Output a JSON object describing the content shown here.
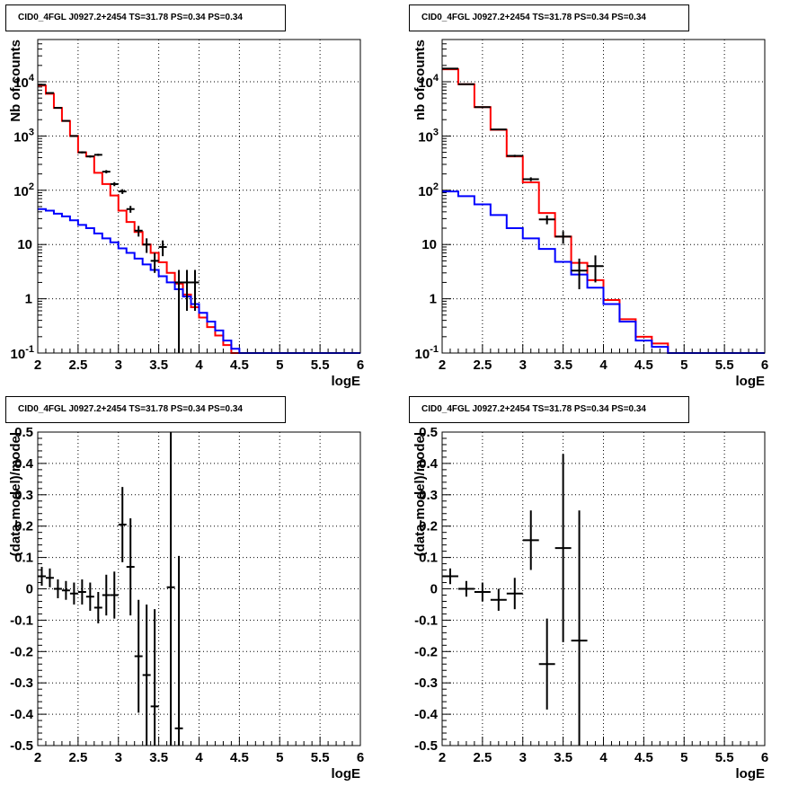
{
  "chart_data": [
    {
      "type": "line",
      "panel": "top-left",
      "title": "CID0_4FGL J0927.2+2454 TS=31.78 PS=0.34 PS=0.34",
      "xlabel": "logE",
      "ylabel": "Nb of counts",
      "xlim": [
        2,
        6
      ],
      "ylim": [
        0.1,
        60000
      ],
      "log_y": true,
      "grid": true,
      "xticks": [
        "2",
        "2.5",
        "3",
        "3.5",
        "4",
        "4.5",
        "5",
        "5.5",
        "6"
      ],
      "yticks": [
        "10^-1",
        "1",
        "10",
        "10^2",
        "10^3",
        "10^4"
      ],
      "bin_edges": [
        2.0,
        2.1,
        2.2,
        2.3,
        2.4,
        2.5,
        2.6,
        2.7,
        2.8,
        2.9,
        3.0,
        3.1,
        3.2,
        3.3,
        3.4,
        3.5,
        3.6,
        3.7,
        3.8,
        3.9,
        4.0,
        4.1,
        4.2,
        4.3,
        4.4,
        4.5,
        4.6,
        4.7,
        4.8,
        4.9,
        5.0,
        5.1,
        5.2,
        5.3,
        5.4,
        5.5,
        5.6,
        5.7,
        5.8,
        5.9,
        6.0
      ],
      "series": [
        {
          "color": "#ff0000",
          "kind": "step",
          "values": [
            8500,
            6000,
            3300,
            1900,
            1000,
            500,
            420,
            210,
            130,
            80,
            42,
            26,
            17,
            10,
            7,
            4.7,
            3,
            1.9,
            1.2,
            0.7,
            0.45,
            0.3,
            0.21,
            0.14,
            0.1,
            0.1,
            0.1,
            0.1,
            0.1,
            0.1,
            0.1,
            0.1,
            0.1,
            0.1,
            0.1,
            0.1,
            0.1,
            0.1,
            0.1,
            0.1
          ]
        },
        {
          "color": "#0000ff",
          "kind": "step",
          "values": [
            45,
            42,
            37,
            33,
            28,
            23,
            20,
            16,
            13,
            11,
            8.5,
            7,
            5.5,
            4.3,
            3.4,
            2.6,
            2,
            1.5,
            1.1,
            0.8,
            0.55,
            0.38,
            0.26,
            0.17,
            0.12,
            0.1,
            0.1,
            0.1,
            0.1,
            0.1,
            0.1,
            0.1,
            0.1,
            0.1,
            0.1,
            0.1,
            0.1,
            0.1,
            0.1,
            0.1
          ]
        },
        {
          "color": "#000000",
          "kind": "points",
          "x": [
            2.05,
            2.15,
            2.25,
            2.35,
            2.45,
            2.55,
            2.65,
            2.75,
            2.85,
            2.95,
            3.05,
            3.15,
            3.25,
            3.35,
            3.45,
            3.55,
            3.75,
            3.85,
            3.95
          ],
          "y": [
            8800,
            6200,
            3300,
            1900,
            1000,
            500,
            420,
            450,
            220,
            130,
            95,
            45,
            18,
            10,
            5,
            9,
            2,
            2,
            2
          ],
          "yerr_low": [
            90,
            80,
            60,
            45,
            30,
            22,
            20,
            21,
            15,
            11,
            9.5,
            6.5,
            4,
            3,
            2,
            2.9,
            1.9,
            1.4,
            1.4
          ],
          "yerr_high": [
            90,
            80,
            60,
            45,
            30,
            22,
            20,
            21,
            15,
            11,
            9.5,
            6.5,
            4,
            3,
            2,
            2.9,
            1.4,
            1.4,
            1.4
          ]
        }
      ]
    },
    {
      "type": "line",
      "panel": "top-right",
      "title": "CID0_4FGL J0927.2+2454 TS=31.78 PS=0.34 PS=0.34",
      "xlabel": "logE",
      "ylabel": "nb of counts",
      "xlim": [
        2,
        6
      ],
      "ylim": [
        0.1,
        60000
      ],
      "log_y": true,
      "grid": true,
      "xticks": [
        "2",
        "2.5",
        "3",
        "3.5",
        "4",
        "4.5",
        "5",
        "5.5",
        "6"
      ],
      "yticks": [
        "10^-1",
        "1",
        "10",
        "10^2",
        "10^3",
        "10^4"
      ],
      "bin_edges": [
        2.0,
        2.2,
        2.4,
        2.6,
        2.8,
        3.0,
        3.2,
        3.4,
        3.6,
        3.8,
        4.0,
        4.2,
        4.4,
        4.6,
        4.8,
        5.0,
        5.2,
        5.4,
        5.6,
        5.8,
        6.0
      ],
      "series": [
        {
          "color": "#ff0000",
          "kind": "step",
          "values": [
            17000,
            9000,
            3400,
            1300,
            420,
            140,
            38,
            14,
            4.6,
            2.2,
            0.95,
            0.42,
            0.2,
            0.15,
            0.1,
            0.1,
            0.1,
            0.1,
            0.1,
            0.1
          ]
        },
        {
          "color": "#0000ff",
          "kind": "step",
          "values": [
            95,
            78,
            55,
            35,
            20,
            13,
            8.3,
            4.8,
            2.8,
            1.6,
            0.8,
            0.38,
            0.17,
            0.13,
            0.1,
            0.1,
            0.1,
            0.1,
            0.1,
            0.1
          ]
        },
        {
          "color": "#000000",
          "kind": "points",
          "x": [
            2.1,
            2.3,
            2.5,
            2.7,
            2.9,
            3.1,
            3.3,
            3.5,
            3.7,
            3.9
          ],
          "y": [
            17500,
            9000,
            3400,
            1320,
            430,
            160,
            29,
            14,
            3.3,
            4
          ],
          "yerr_low": [
            130,
            95,
            58,
            36,
            21,
            13,
            5.4,
            3.7,
            1.8,
            2
          ],
          "yerr_high": [
            130,
            95,
            58,
            36,
            21,
            13,
            5.4,
            3.7,
            2.2,
            2.3
          ]
        }
      ]
    },
    {
      "type": "scatter",
      "panel": "bottom-left",
      "title": "CID0_4FGL J0927.2+2454 TS=31.78 PS=0.34 PS=0.34",
      "xlabel": "logE",
      "ylabel": "(data-model)/model",
      "xlim": [
        2,
        6
      ],
      "ylim": [
        -0.5,
        0.5
      ],
      "grid": true,
      "xticks": [
        "2",
        "2.5",
        "3",
        "3.5",
        "4",
        "4.5",
        "5",
        "5.5",
        "6"
      ],
      "yticks": [
        "-0.5",
        "-0.4",
        "-0.3",
        "-0.2",
        "-0.1",
        "0",
        "0.1",
        "0.2",
        "0.3",
        "0.4",
        "0.5"
      ],
      "x": [
        2.05,
        2.15,
        2.25,
        2.35,
        2.45,
        2.55,
        2.65,
        2.75,
        2.85,
        2.95,
        3.05,
        3.15,
        3.25,
        3.35,
        3.45,
        3.65,
        3.75
      ],
      "xerr": 0.05,
      "y": [
        0.04,
        0.035,
        0.0,
        -0.005,
        -0.015,
        -0.01,
        -0.025,
        -0.06,
        -0.02,
        -0.02,
        0.205,
        0.07,
        -0.215,
        -0.275,
        -0.375,
        0.005,
        -0.445
      ],
      "yerr": [
        0.03,
        0.03,
        0.03,
        0.03,
        0.035,
        0.04,
        0.045,
        0.05,
        0.065,
        0.075,
        0.12,
        0.155,
        0.18,
        0.225,
        0.31,
        0.61,
        0.55
      ],
      "series": [
        {
          "color": "#000000",
          "kind": "points"
        }
      ]
    },
    {
      "type": "scatter",
      "panel": "bottom-right",
      "title": "CID0_4FGL J0927.2+2454 TS=31.78 PS=0.34 PS=0.34",
      "xlabel": "logE",
      "ylabel": "(data-model)/model",
      "xlim": [
        2,
        6
      ],
      "ylim": [
        -0.5,
        0.5
      ],
      "grid": true,
      "xticks": [
        "2",
        "2.5",
        "3",
        "3.5",
        "4",
        "4.5",
        "5",
        "5.5",
        "6"
      ],
      "yticks": [
        "-0.5",
        "-0.4",
        "-0.3",
        "-0.2",
        "-0.1",
        "0",
        "0.1",
        "0.2",
        "0.3",
        "0.4",
        "0.5"
      ],
      "x": [
        2.1,
        2.3,
        2.5,
        2.7,
        2.9,
        3.1,
        3.3,
        3.5,
        3.7
      ],
      "xerr": 0.1,
      "y": [
        0.04,
        0.0,
        -0.01,
        -0.035,
        -0.015,
        0.155,
        -0.24,
        0.13,
        -0.165
      ],
      "yerr": [
        0.025,
        0.025,
        0.03,
        0.035,
        0.05,
        0.095,
        0.145,
        0.3,
        0.415
      ],
      "series": [
        {
          "color": "#000000",
          "kind": "points"
        }
      ]
    }
  ]
}
